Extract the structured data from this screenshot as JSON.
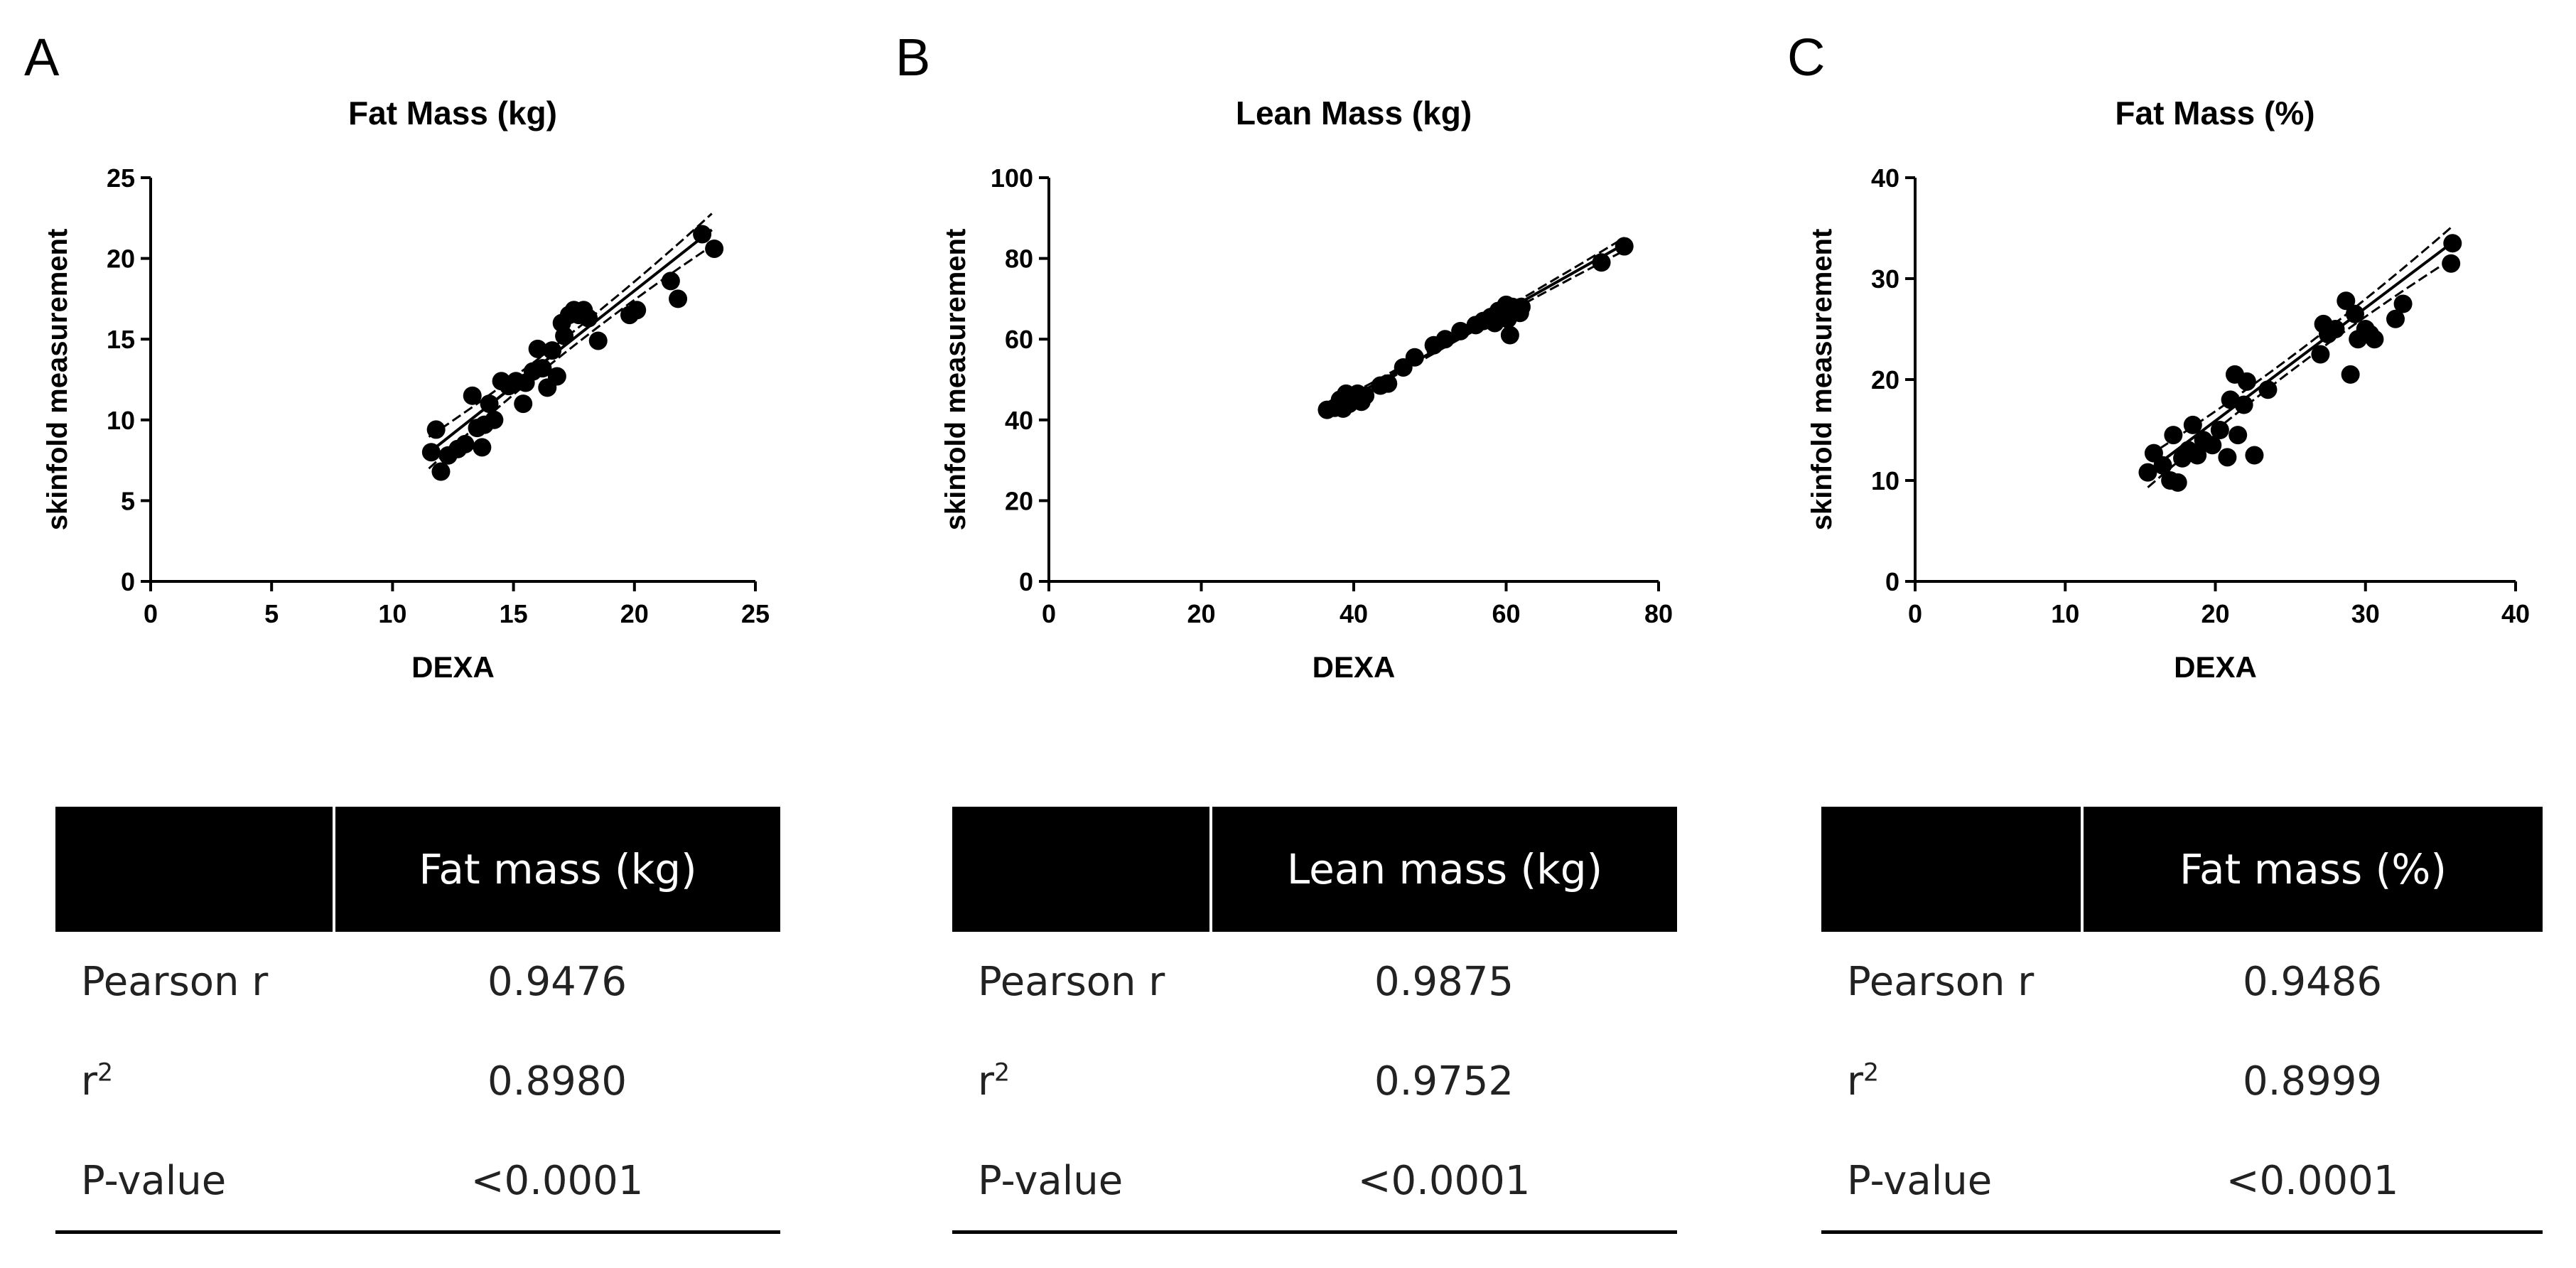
{
  "panels": [
    {
      "letter": "A",
      "table": {
        "header": "Fat mass (kg)",
        "rows": [
          {
            "label": "Pearson r",
            "value": "0.9476"
          },
          {
            "label": "r",
            "sup": "2",
            "value": "0.8980"
          },
          {
            "label": "P-value",
            "value": "<0.0001"
          }
        ]
      }
    },
    {
      "letter": "B",
      "table": {
        "header": "Lean mass (kg)",
        "rows": [
          {
            "label": "Pearson r",
            "value": "0.9875"
          },
          {
            "label": "r",
            "sup": "2",
            "value": "0.9752"
          },
          {
            "label": "P-value",
            "value": "<0.0001"
          }
        ]
      }
    },
    {
      "letter": "C",
      "table": {
        "header": "Fat mass (%)",
        "rows": [
          {
            "label": "Pearson r",
            "value": "0.9486"
          },
          {
            "label": "r",
            "sup": "2",
            "value": "0.8999"
          },
          {
            "label": "P-value",
            "value": "<0.0001"
          }
        ]
      }
    }
  ],
  "chart_data": [
    {
      "type": "scatter",
      "title": "Fat Mass (kg)",
      "xlabel": "DEXA",
      "ylabel": "skinfold measurement",
      "xlim": [
        0,
        25
      ],
      "ylim": [
        0,
        25
      ],
      "xticks": [
        0,
        5,
        10,
        15,
        20,
        25
      ],
      "yticks": [
        0,
        5,
        10,
        15,
        20,
        25
      ],
      "grid": false,
      "regression": {
        "slope": 1.18,
        "intercept": -5.6,
        "x_range": [
          11.5,
          23.2
        ]
      },
      "confidence_band": {
        "ci_center": 0.45,
        "ci_ends": 1.0,
        "center_x": 17.3
      },
      "points": [
        [
          11.6,
          8.0
        ],
        [
          11.8,
          9.4
        ],
        [
          12.0,
          6.8
        ],
        [
          12.3,
          7.8
        ],
        [
          12.7,
          8.2
        ],
        [
          13.0,
          8.5
        ],
        [
          13.3,
          11.5
        ],
        [
          13.5,
          9.5
        ],
        [
          13.7,
          8.3
        ],
        [
          13.8,
          9.7
        ],
        [
          14.0,
          11.0
        ],
        [
          14.2,
          10.0
        ],
        [
          14.5,
          12.4
        ],
        [
          14.8,
          12.1
        ],
        [
          15.1,
          12.4
        ],
        [
          15.4,
          11.0
        ],
        [
          15.5,
          12.3
        ],
        [
          15.8,
          13.0
        ],
        [
          16.0,
          14.4
        ],
        [
          16.2,
          13.2
        ],
        [
          16.4,
          12.0
        ],
        [
          16.6,
          14.3
        ],
        [
          16.8,
          12.7
        ],
        [
          17.0,
          16.0
        ],
        [
          17.1,
          15.2
        ],
        [
          17.3,
          16.5
        ],
        [
          17.5,
          16.8
        ],
        [
          17.7,
          16.5
        ],
        [
          17.9,
          16.8
        ],
        [
          18.1,
          16.3
        ],
        [
          18.5,
          14.9
        ],
        [
          19.8,
          16.5
        ],
        [
          20.1,
          16.8
        ],
        [
          21.5,
          18.6
        ],
        [
          21.8,
          17.5
        ],
        [
          22.8,
          21.5
        ],
        [
          23.3,
          20.6
        ]
      ]
    },
    {
      "type": "scatter",
      "title": "Lean Mass (kg)",
      "xlabel": "DEXA",
      "ylabel": "skinfold measurement",
      "xlim": [
        0,
        80
      ],
      "ylim": [
        0,
        100
      ],
      "xticks": [
        0,
        20,
        40,
        60,
        80
      ],
      "yticks": [
        0,
        20,
        40,
        60,
        80,
        100
      ],
      "grid": false,
      "regression": {
        "slope": 1.06,
        "intercept": 3.5,
        "x_range": [
          36.5,
          75.5
        ]
      },
      "confidence_band": {
        "ci_center": 0.6,
        "ci_ends": 1.6,
        "center_x": 52
      },
      "points": [
        [
          36.5,
          42.5
        ],
        [
          37.5,
          43.0
        ],
        [
          38.2,
          45.0
        ],
        [
          38.6,
          42.8
        ],
        [
          39.0,
          46.5
        ],
        [
          39.4,
          44.0
        ],
        [
          40.0,
          45.5
        ],
        [
          40.5,
          46.5
        ],
        [
          41.0,
          44.5
        ],
        [
          41.5,
          46.0
        ],
        [
          43.5,
          48.5
        ],
        [
          44.5,
          49.0
        ],
        [
          46.5,
          53.0
        ],
        [
          48.0,
          55.5
        ],
        [
          50.5,
          58.5
        ],
        [
          52.0,
          60.0
        ],
        [
          54.0,
          62.0
        ],
        [
          56.0,
          63.5
        ],
        [
          57.0,
          64.5
        ],
        [
          58.0,
          65.5
        ],
        [
          58.5,
          64.0
        ],
        [
          59.0,
          67.0
        ],
        [
          59.5,
          66.0
        ],
        [
          60.0,
          68.5
        ],
        [
          60.2,
          65.0
        ],
        [
          60.5,
          61.0
        ],
        [
          60.8,
          68.0
        ],
        [
          61.2,
          67.0
        ],
        [
          61.8,
          66.5
        ],
        [
          62.0,
          68.0
        ],
        [
          72.5,
          79.0
        ],
        [
          75.5,
          83.0
        ]
      ]
    },
    {
      "type": "scatter",
      "title": "Fat Mass (%)",
      "xlabel": "DEXA",
      "ylabel": "skinfold measurement",
      "xlim": [
        0,
        40
      ],
      "ylim": [
        0,
        40
      ],
      "xticks": [
        0,
        10,
        20,
        30,
        40
      ],
      "yticks": [
        0,
        10,
        20,
        30,
        40
      ],
      "grid": false,
      "regression": {
        "slope": 1.12,
        "intercept": -6.5,
        "x_range": [
          15.5,
          35.8
        ]
      },
      "confidence_band": {
        "ci_center": 0.7,
        "ci_ends": 1.6,
        "center_x": 25.5
      },
      "points": [
        [
          15.5,
          10.8
        ],
        [
          15.9,
          12.7
        ],
        [
          16.5,
          11.5
        ],
        [
          17.0,
          10.0
        ],
        [
          17.2,
          14.5
        ],
        [
          17.5,
          9.8
        ],
        [
          17.8,
          12.2
        ],
        [
          18.2,
          13.0
        ],
        [
          18.5,
          15.5
        ],
        [
          18.8,
          12.5
        ],
        [
          19.2,
          14.0
        ],
        [
          19.8,
          13.5
        ],
        [
          20.3,
          15.0
        ],
        [
          20.8,
          12.3
        ],
        [
          21.0,
          18.0
        ],
        [
          21.3,
          20.5
        ],
        [
          21.5,
          14.5
        ],
        [
          21.9,
          17.5
        ],
        [
          22.1,
          19.8
        ],
        [
          22.6,
          12.5
        ],
        [
          23.5,
          19.0
        ],
        [
          27.0,
          22.5
        ],
        [
          27.2,
          25.5
        ],
        [
          27.5,
          24.5
        ],
        [
          28.0,
          25.0
        ],
        [
          28.7,
          27.8
        ],
        [
          29.0,
          20.5
        ],
        [
          29.3,
          26.5
        ],
        [
          29.5,
          24.0
        ],
        [
          30.0,
          25.0
        ],
        [
          30.3,
          24.5
        ],
        [
          30.6,
          24.0
        ],
        [
          32.0,
          26.0
        ],
        [
          32.5,
          27.5
        ],
        [
          35.7,
          31.5
        ],
        [
          35.8,
          33.5
        ]
      ]
    }
  ]
}
